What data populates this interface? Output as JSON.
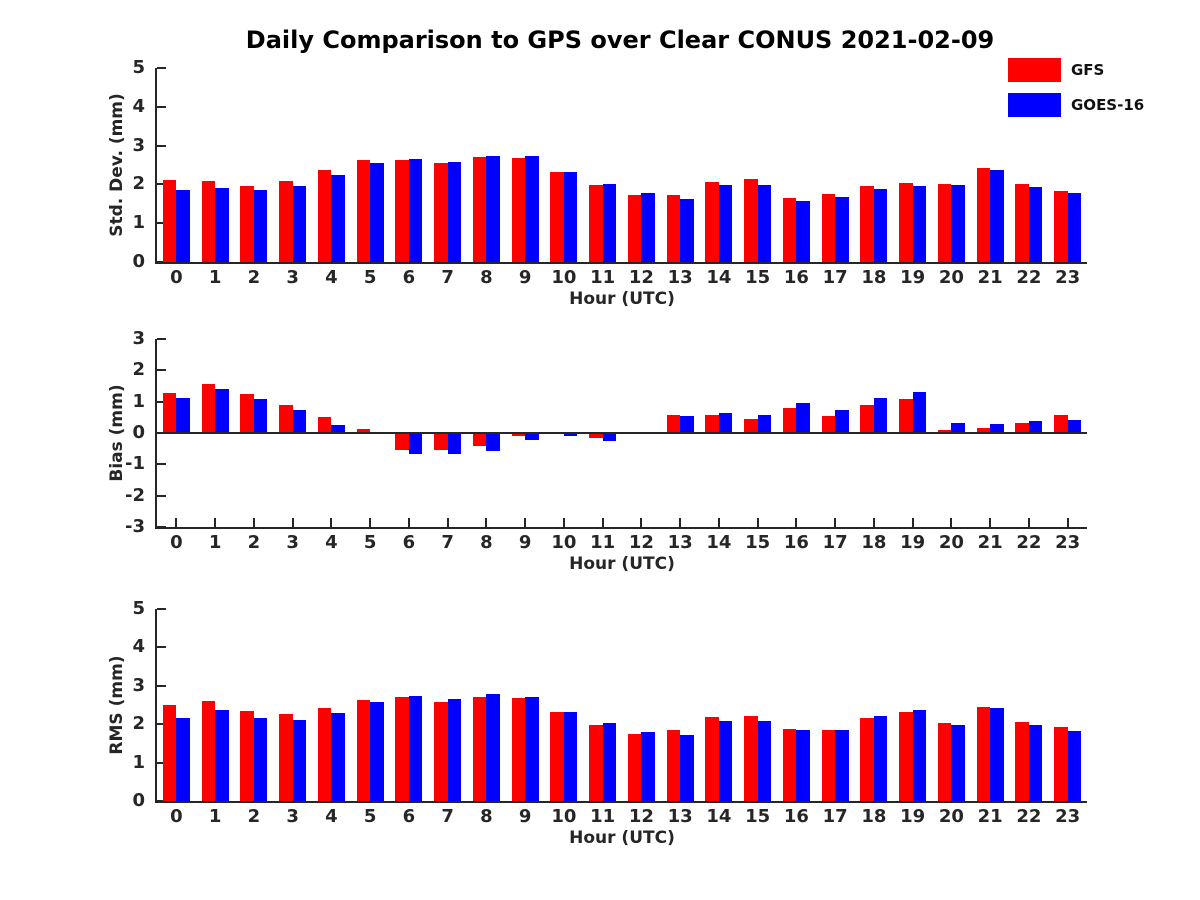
{
  "title": "Daily Comparison to GPS over Clear CONUS 2021-02-09",
  "axis_color": "#262626",
  "legend": {
    "position": "top-right",
    "items": [
      {
        "label": "GFS",
        "color": "#ff0000"
      },
      {
        "label": "GOES-16",
        "color": "#0000ff"
      }
    ]
  },
  "chart_data": [
    {
      "type": "bar",
      "panel": "std-dev",
      "ylabel": "Std. Dev. (mm)",
      "xlabel": "Hour (UTC)",
      "ylim": [
        0,
        5
      ],
      "yticks": [
        0,
        1,
        2,
        3,
        4,
        5
      ],
      "grid": false,
      "categories": [
        "0",
        "1",
        "2",
        "3",
        "4",
        "5",
        "6",
        "7",
        "8",
        "9",
        "10",
        "11",
        "12",
        "13",
        "14",
        "15",
        "16",
        "17",
        "18",
        "19",
        "20",
        "21",
        "22",
        "23"
      ],
      "series": [
        {
          "name": "GFS",
          "color": "#ff0000",
          "values": [
            2.12,
            2.08,
            1.96,
            2.08,
            2.37,
            2.64,
            2.64,
            2.54,
            2.71,
            2.67,
            2.32,
            1.98,
            1.73,
            1.72,
            2.07,
            2.13,
            1.66,
            1.75,
            1.96,
            2.04,
            2.02,
            2.43,
            2.02,
            1.84
          ]
        },
        {
          "name": "GOES-16",
          "color": "#0000ff",
          "values": [
            1.85,
            1.9,
            1.85,
            1.97,
            2.25,
            2.56,
            2.66,
            2.58,
            2.74,
            2.72,
            2.33,
            2.01,
            1.78,
            1.62,
            1.98,
            1.98,
            1.56,
            1.68,
            1.88,
            1.96,
            1.98,
            2.36,
            1.94,
            1.77
          ]
        }
      ]
    },
    {
      "type": "bar",
      "panel": "bias",
      "ylabel": "Bias (mm)",
      "xlabel": "Hour (UTC)",
      "ylim": [
        -3,
        3
      ],
      "yticks": [
        -3,
        -2,
        -1,
        0,
        1,
        2,
        3
      ],
      "grid": false,
      "categories": [
        "0",
        "1",
        "2",
        "3",
        "4",
        "5",
        "6",
        "7",
        "8",
        "9",
        "10",
        "11",
        "12",
        "13",
        "14",
        "15",
        "16",
        "17",
        "18",
        "19",
        "20",
        "21",
        "22",
        "23"
      ],
      "series": [
        {
          "name": "GFS",
          "color": "#ff0000",
          "values": [
            1.28,
            1.55,
            1.25,
            0.9,
            0.5,
            0.12,
            -0.55,
            -0.55,
            -0.4,
            -0.1,
            -0.04,
            -0.15,
            0.0,
            0.58,
            0.57,
            0.45,
            0.8,
            0.53,
            0.88,
            1.08,
            0.08,
            0.15,
            0.33,
            0.57
          ]
        },
        {
          "name": "GOES-16",
          "color": "#0000ff",
          "values": [
            1.12,
            1.42,
            1.1,
            0.72,
            0.27,
            0.02,
            -0.68,
            -0.68,
            -0.58,
            -0.22,
            -0.1,
            -0.25,
            0.0,
            0.55,
            0.64,
            0.56,
            0.95,
            0.75,
            1.13,
            1.31,
            0.31,
            0.28,
            0.38,
            0.43
          ]
        }
      ]
    },
    {
      "type": "bar",
      "panel": "rms",
      "ylabel": "RMS (mm)",
      "xlabel": "Hour (UTC)",
      "ylim": [
        0,
        5
      ],
      "yticks": [
        0,
        1,
        2,
        3,
        4,
        5
      ],
      "grid": false,
      "categories": [
        "0",
        "1",
        "2",
        "3",
        "4",
        "5",
        "6",
        "7",
        "8",
        "9",
        "10",
        "11",
        "12",
        "13",
        "14",
        "15",
        "16",
        "17",
        "18",
        "19",
        "20",
        "21",
        "22",
        "23"
      ],
      "series": [
        {
          "name": "GFS",
          "color": "#ff0000",
          "values": [
            2.5,
            2.6,
            2.35,
            2.27,
            2.42,
            2.62,
            2.7,
            2.59,
            2.72,
            2.68,
            2.33,
            1.98,
            1.75,
            1.85,
            2.18,
            2.22,
            1.87,
            1.85,
            2.17,
            2.32,
            2.04,
            2.45,
            2.07,
            1.93
          ]
        },
        {
          "name": "GOES-16",
          "color": "#0000ff",
          "values": [
            2.17,
            2.38,
            2.15,
            2.12,
            2.28,
            2.57,
            2.74,
            2.66,
            2.79,
            2.72,
            2.33,
            2.03,
            1.8,
            1.73,
            2.08,
            2.08,
            1.85,
            1.85,
            2.22,
            2.37,
            1.98,
            2.41,
            1.99,
            1.82
          ]
        }
      ]
    }
  ]
}
